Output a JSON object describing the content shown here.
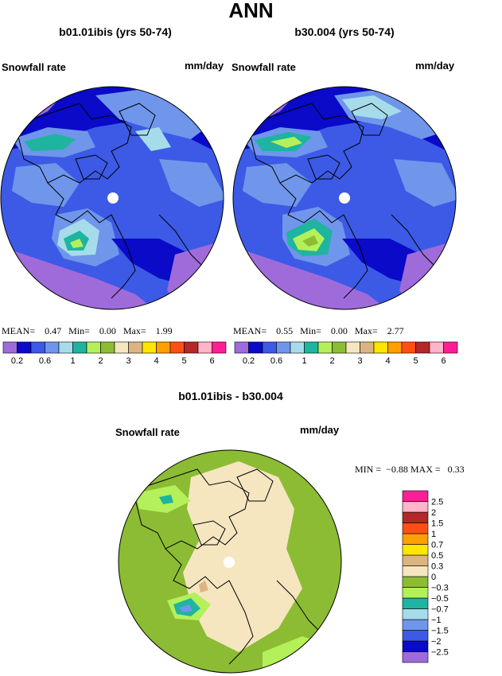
{
  "header": {
    "title": "ANN"
  },
  "panels": [
    {
      "title": "b01.01ibis (yrs 50-74)",
      "variable": "Snowfall rate",
      "units": "mm/day",
      "stats": {
        "mean_label": "MEAN=",
        "mean": "0.47",
        "min_label": "Min=",
        "min": "0.00",
        "max_label": "Max=",
        "max": "1.99"
      }
    },
    {
      "title": "b30.004 (yrs 50-74)",
      "variable": "Snowfall rate",
      "units": "mm/day",
      "stats": {
        "mean_label": "MEAN=",
        "mean": "0.55",
        "min_label": "Min=",
        "min": "0.00",
        "max_label": "Max=",
        "max": "2.77"
      }
    }
  ],
  "diff_panel": {
    "title": "b01.01ibis - b30.004",
    "variable": "Snowfall rate",
    "units": "mm/day",
    "min_label": "MIN =",
    "min": "−0.88",
    "max_label": "MAX =",
    "max": "0.33"
  },
  "colorbar_main": {
    "colors": [
      "#9f6bdb",
      "#0a0ac8",
      "#3c5ae6",
      "#6f96ea",
      "#a6dcea",
      "#1eb4a0",
      "#b4f05a",
      "#8cbc34",
      "#f5e6c0",
      "#dcb482",
      "#ffe600",
      "#ffa000",
      "#ff5014",
      "#b42828",
      "#ffb4c8",
      "#ff1e96"
    ],
    "tick_labels": [
      "0.2",
      "0.6",
      "1",
      "2",
      "3",
      "4",
      "5",
      "6"
    ]
  },
  "colorbar_diff": {
    "colors": [
      "#9f6bdb",
      "#0a0ac8",
      "#3c5ae6",
      "#6f96ea",
      "#a6dcea",
      "#1eb4a0",
      "#b4f05a",
      "#8cbc34",
      "#f5e6c0",
      "#dcb482",
      "#ffe600",
      "#ffa000",
      "#ff5014",
      "#b42828",
      "#ffb4c8",
      "#ff1e96"
    ],
    "tick_labels": [
      "−2.5",
      "−2",
      "−1.5",
      "−1",
      "−0.7",
      "−0.5",
      "−0.3",
      "0",
      "0.3",
      "0.5",
      "0.7",
      "1",
      "1.5",
      "2",
      "2.5"
    ]
  },
  "chart_data": [
    {
      "type": "heatmap",
      "title": "b01.01ibis (yrs 50-74)",
      "subtitle": "Snowfall rate",
      "units": "mm/day",
      "projection": "polar stereographic (north pole)",
      "mean": 0.47,
      "min": 0.0,
      "max": 1.99,
      "levels": [
        0.2,
        0.4,
        0.6,
        0.8,
        1,
        1.5,
        2,
        2.5,
        3,
        3.5,
        4,
        4.5,
        5,
        5.5,
        6
      ]
    },
    {
      "type": "heatmap",
      "title": "b30.004 (yrs 50-74)",
      "subtitle": "Snowfall rate",
      "units": "mm/day",
      "projection": "polar stereographic (north pole)",
      "mean": 0.55,
      "min": 0.0,
      "max": 2.77,
      "levels": [
        0.2,
        0.4,
        0.6,
        0.8,
        1,
        1.5,
        2,
        2.5,
        3,
        3.5,
        4,
        4.5,
        5,
        5.5,
        6
      ]
    },
    {
      "type": "heatmap",
      "title": "b01.01ibis - b30.004",
      "subtitle": "Snowfall rate",
      "units": "mm/day",
      "projection": "polar stereographic (north pole)",
      "min": -0.88,
      "max": 0.33,
      "levels": [
        -2.5,
        -2,
        -1.5,
        -1,
        -0.7,
        -0.5,
        -0.3,
        0,
        0.3,
        0.5,
        0.7,
        1,
        1.5,
        2,
        2.5
      ]
    }
  ]
}
